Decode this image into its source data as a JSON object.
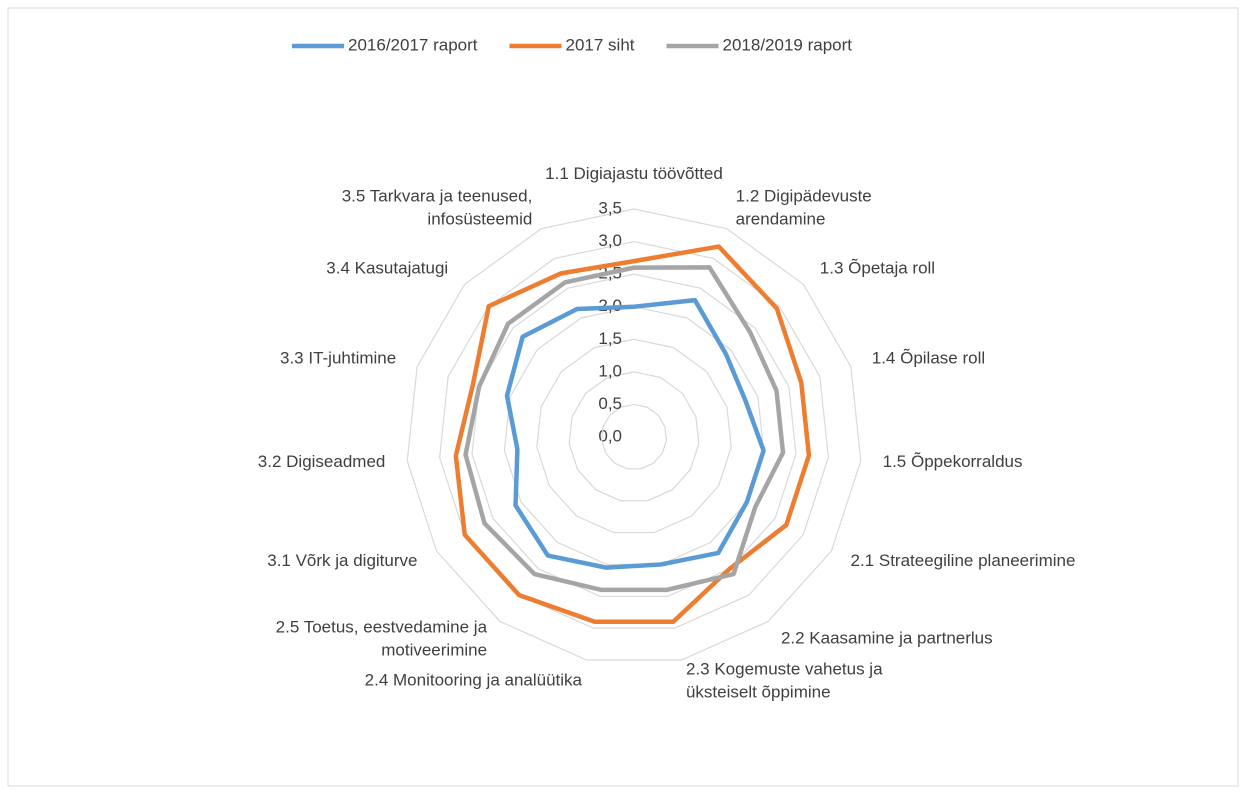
{
  "chart_data": {
    "type": "radar",
    "categories": [
      "1.1 Digiajastu töövõtted",
      "1.2 Digipädevuste\narendamine",
      "1.3 Õpetaja roll",
      "1.4 Õpilase roll",
      "1.5 Õppekorraldus",
      "2.1 Strateegiline planeerimine",
      "2.2 Kaasamine ja partnerlus",
      "2.3 Kogemuste vahetus ja\nüksteiselt õppimine",
      "2.4 Monitooring ja analüütika",
      "2.5 Toetus, eestvedamine ja\nmotiveerimine",
      "3.1 Võrk ja digiturve",
      "3.2 Digiseadmed",
      "3.3 IT-juhtimine",
      "3.4 Kasutajatugi",
      "3.5 Tarkvara ja teenused,\ninfosüsteemid"
    ],
    "series": [
      {
        "name": "2016/2017 raport",
        "color": "#5b9bd5",
        "values": [
          2.0,
          2.3,
          1.9,
          1.8,
          2.0,
          2.0,
          2.2,
          2.0,
          2.05,
          2.25,
          2.1,
          1.8,
          2.05,
          2.3,
          2.15
        ]
      },
      {
        "name": "2017 siht",
        "color": "#ed7d31",
        "values": [
          2.7,
          3.2,
          2.95,
          2.7,
          2.7,
          2.7,
          2.5,
          2.9,
          2.9,
          3.0,
          3.0,
          2.75,
          2.6,
          3.0,
          2.75
        ]
      },
      {
        "name": "2018/2019 raport",
        "color": "#a5a5a5",
        "values": [
          2.6,
          2.85,
          2.4,
          2.3,
          2.3,
          2.15,
          2.6,
          2.4,
          2.4,
          2.6,
          2.65,
          2.6,
          2.5,
          2.6,
          2.6
        ]
      }
    ],
    "ylim": [
      0,
      3.5
    ],
    "yticks": [
      {
        "value": 0,
        "label": "0,0"
      },
      {
        "value": 0.5,
        "label": "0,5"
      },
      {
        "value": 1,
        "label": "1,0"
      },
      {
        "value": 1.5,
        "label": "1,5"
      },
      {
        "value": 2,
        "label": "2,0"
      },
      {
        "value": 2.5,
        "label": "2,5"
      },
      {
        "value": 3,
        "label": "3,0"
      },
      {
        "value": 3.5,
        "label": "3,5"
      }
    ],
    "grid": true,
    "legend": "top"
  }
}
